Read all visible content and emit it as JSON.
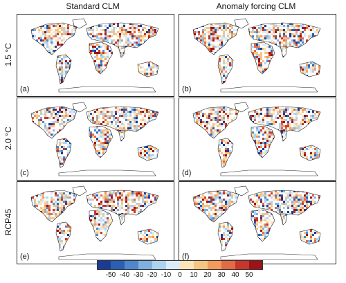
{
  "columns": [
    "Standard CLM",
    "Anomaly forcing CLM"
  ],
  "rows": [
    "1.5 °C",
    "2.0 °C",
    "RCP45"
  ],
  "panel_labels": [
    "(a)",
    "(b)",
    "(c)",
    "(d)",
    "(e)",
    "(f)"
  ],
  "colorbar": {
    "ticks": [
      "-50",
      "-40",
      "-30",
      "-20",
      "-10",
      "0",
      "10",
      "20",
      "30",
      "40",
      "50"
    ],
    "colors": [
      "#1a3c95",
      "#2a5fb5",
      "#4f87cc",
      "#7fb0e0",
      "#acd2f0",
      "#dcebf7",
      "#fbe5b8",
      "#f8c482",
      "#f19a5c",
      "#e26a44",
      "#c9352a",
      "#9e1218"
    ]
  }
}
